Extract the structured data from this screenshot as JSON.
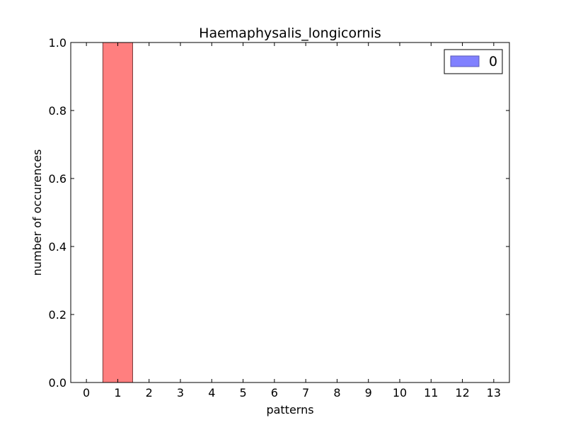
{
  "chart_data": {
    "type": "bar",
    "title": "Haemaphysalis_longicornis",
    "xlabel": "patterns",
    "ylabel": "number of occurences",
    "categories": [
      "0",
      "1",
      "2",
      "3",
      "4",
      "5",
      "6",
      "7",
      "8",
      "9",
      "10",
      "11",
      "12",
      "13"
    ],
    "values": [
      0,
      1,
      0,
      0,
      0,
      0,
      0,
      0,
      0,
      0,
      0,
      0,
      0,
      0
    ],
    "bar_color": "#ff7f7f",
    "xlim": [
      -0.5,
      13.5
    ],
    "ylim": [
      0,
      1.0
    ],
    "yticks": [
      "0.0",
      "0.2",
      "0.4",
      "0.6",
      "0.8",
      "1.0"
    ],
    "legend": {
      "position": "top-right",
      "entries": [
        {
          "label": "0",
          "color": "#8080ff"
        }
      ]
    },
    "grid": false
  }
}
